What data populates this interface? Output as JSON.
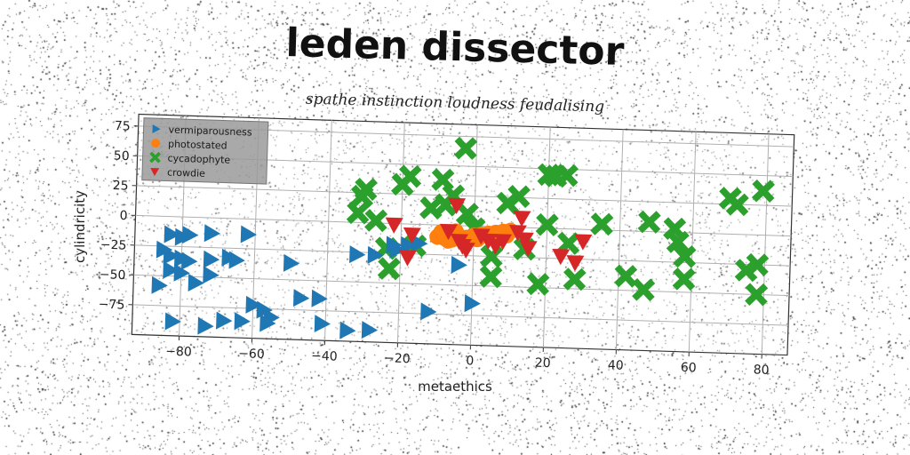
{
  "chart_data": {
    "type": "scatter",
    "title": "leden dissector",
    "subtitle": "spathe instinction loudness feudalising",
    "xlabel": "metaethics",
    "ylabel": "cylindricity",
    "xlim": [
      -93,
      87
    ],
    "ylim": [
      -100,
      85
    ],
    "xticks": [
      -80,
      -60,
      -40,
      -20,
      0,
      20,
      40,
      60,
      80
    ],
    "yticks": [
      75,
      50,
      25,
      0,
      -25,
      -50,
      -75
    ],
    "xtick_labels": [
      "−80",
      "−60",
      "−40",
      "−20",
      "0",
      "20",
      "40",
      "60",
      "80"
    ],
    "ytick_labels": [
      "75",
      "50",
      "25",
      "0",
      "−25",
      "−50",
      "−75"
    ],
    "grid": true,
    "legend_position": "top-left",
    "series": [
      {
        "name": "vermiparousness",
        "marker": "triangle-right",
        "color": "#1f77b4",
        "points": [
          [
            -83,
            -15
          ],
          [
            -80,
            -17
          ],
          [
            -78,
            -15
          ],
          [
            -72,
            -13
          ],
          [
            -62,
            -13
          ],
          [
            -85,
            -28
          ],
          [
            -83,
            -33
          ],
          [
            -80,
            -35
          ],
          [
            -78,
            -37
          ],
          [
            -72,
            -35
          ],
          [
            -67,
            -33
          ],
          [
            -65,
            -35
          ],
          [
            -83,
            -45
          ],
          [
            -80,
            -47
          ],
          [
            -86,
            -58
          ],
          [
            -76,
            -55
          ],
          [
            -72,
            -48
          ],
          [
            -60,
            -72
          ],
          [
            -57,
            -76
          ],
          [
            -55,
            -82
          ],
          [
            -47,
            -65
          ],
          [
            -42,
            -65
          ],
          [
            -82,
            -88
          ],
          [
            -73,
            -91
          ],
          [
            -68,
            -86
          ],
          [
            -63,
            -86
          ],
          [
            -56,
            -87
          ],
          [
            -41,
            -86
          ],
          [
            -34,
            -91
          ],
          [
            -28,
            -90
          ],
          [
            -50,
            -36
          ],
          [
            -32,
            -27
          ],
          [
            -27,
            -27
          ],
          [
            -22,
            -18
          ],
          [
            -18,
            -18
          ],
          [
            -21,
            -22
          ],
          [
            -15,
            -16
          ],
          [
            -12,
            -73
          ],
          [
            -4,
            -33
          ],
          [
            0,
            -65
          ]
        ]
      },
      {
        "name": "photostated",
        "marker": "circle",
        "color": "#ff7f0e",
        "points": [
          [
            -10,
            -10
          ],
          [
            -8,
            -11
          ],
          [
            -6,
            -12
          ],
          [
            -4,
            -9
          ],
          [
            -2,
            -10
          ],
          [
            0,
            -8
          ],
          [
            2,
            -7
          ],
          [
            4,
            -6
          ],
          [
            6,
            -5
          ],
          [
            8,
            -4
          ],
          [
            10,
            -3
          ],
          [
            -9,
            -6
          ],
          [
            -5,
            -5
          ],
          [
            1,
            -11
          ],
          [
            5,
            -9
          ],
          [
            9,
            -7
          ],
          [
            -7,
            -13
          ]
        ]
      },
      {
        "name": "cycadophyte",
        "marker": "x",
        "color": "#2ca02c",
        "points": [
          [
            -30,
            28
          ],
          [
            -31,
            22
          ],
          [
            -32,
            8
          ],
          [
            -27,
            2
          ],
          [
            -18,
            40
          ],
          [
            -20,
            33
          ],
          [
            -9,
            38
          ],
          [
            -8,
            17
          ],
          [
            -12,
            14
          ],
          [
            -6,
            25
          ],
          [
            -2,
            10
          ],
          [
            0,
            -2
          ],
          [
            9,
            20
          ],
          [
            12,
            26
          ],
          [
            -3,
            65
          ],
          [
            -24,
            -21
          ],
          [
            -23,
            -38
          ],
          [
            -16,
            -18
          ],
          [
            5,
            -25
          ],
          [
            5,
            -42
          ],
          [
            14,
            -18
          ],
          [
            18,
            -47
          ],
          [
            20,
            3
          ],
          [
            20,
            45
          ],
          [
            22,
            44
          ],
          [
            25,
            45
          ],
          [
            26,
            -12
          ],
          [
            28,
            -42
          ],
          [
            35,
            5
          ],
          [
            42,
            -38
          ],
          [
            47,
            -49
          ],
          [
            48,
            8
          ],
          [
            55,
            3
          ],
          [
            56,
            -8
          ],
          [
            58,
            -20
          ],
          [
            58,
            -39
          ],
          [
            70,
            30
          ],
          [
            72,
            25
          ],
          [
            75,
            -30
          ],
          [
            78,
            -25
          ],
          [
            78,
            -50
          ],
          [
            79,
            37
          ]
        ]
      },
      {
        "name": "crowdie",
        "marker": "triangle-down",
        "color": "#d62728",
        "points": [
          [
            -22,
            -1
          ],
          [
            -17,
            -9
          ],
          [
            -18,
            -28
          ],
          [
            -7,
            -5
          ],
          [
            -5,
            17
          ],
          [
            -4,
            -13
          ],
          [
            -3,
            -17
          ],
          [
            -2,
            -20
          ],
          [
            2,
            -8
          ],
          [
            4,
            -12
          ],
          [
            6,
            -16
          ],
          [
            8,
            -12
          ],
          [
            12,
            -4
          ],
          [
            13,
            8
          ],
          [
            14,
            -10
          ],
          [
            15,
            -17
          ],
          [
            24,
            -23
          ],
          [
            28,
            -28
          ],
          [
            30,
            -10
          ]
        ]
      }
    ]
  }
}
